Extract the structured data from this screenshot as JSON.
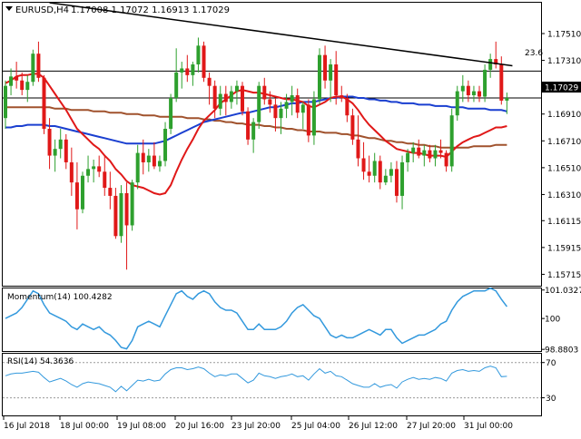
{
  "header": {
    "symbol_label": "EURUSD,H4",
    "ohlc_text": "1.17008 1.17072 1.16913 1.17029"
  },
  "price_badge": "1.17029",
  "fib_label": "23.6",
  "colors": {
    "bull": "#2ea02e",
    "bear": "#e01818",
    "ma_fast": "#e01818",
    "ma_mid": "#1a3fd0",
    "ma_slow": "#a0522d",
    "oscillator": "#3399dd",
    "grid": "#000000",
    "badge_bg": "#000000",
    "badge_fg": "#ffffff"
  },
  "chart_data": [
    {
      "type": "candlestick",
      "symbol": "EURUSD",
      "timeframe": "H4",
      "ylim": [
        1.1563,
        1.1774
      ],
      "y_ticks": [
        "1.17510",
        "1.17310",
        "1.17110",
        "1.17029",
        "1.16910",
        "1.16710",
        "1.16510",
        "1.16310",
        "1.16115",
        "1.15915",
        "1.15715"
      ],
      "x_ticks": [
        "16 Jul 2018",
        "18 Jul 00:00",
        "19 Jul 08:00",
        "20 Jul 16:00",
        "23 Jul 20:00",
        "25 Jul 04:00",
        "26 Jul 12:00",
        "27 Jul 20:00",
        "31 Jul 00:00"
      ],
      "horizontal_lines": [
        1.1723,
        1.1703
      ],
      "trendline": {
        "from": [
          8,
          1.1774
        ],
        "to": [
          92,
          1.1727
        ]
      },
      "candles": [
        {
          "o": 1.1688,
          "h": 1.1716,
          "l": 1.168,
          "c": 1.1712
        },
        {
          "o": 1.1712,
          "h": 1.1725,
          "l": 1.1705,
          "c": 1.1719
        },
        {
          "o": 1.1719,
          "h": 1.173,
          "l": 1.171,
          "c": 1.1716
        },
        {
          "o": 1.1716,
          "h": 1.1722,
          "l": 1.1705,
          "c": 1.1709
        },
        {
          "o": 1.1709,
          "h": 1.172,
          "l": 1.17,
          "c": 1.1715
        },
        {
          "o": 1.1715,
          "h": 1.1739,
          "l": 1.1712,
          "c": 1.1736
        },
        {
          "o": 1.1736,
          "h": 1.1745,
          "l": 1.1715,
          "c": 1.1718
        },
        {
          "o": 1.1718,
          "h": 1.172,
          "l": 1.1676,
          "c": 1.168
        },
        {
          "o": 1.168,
          "h": 1.1688,
          "l": 1.165,
          "c": 1.166
        },
        {
          "o": 1.166,
          "h": 1.1672,
          "l": 1.1648,
          "c": 1.1665
        },
        {
          "o": 1.1665,
          "h": 1.168,
          "l": 1.1658,
          "c": 1.1672
        },
        {
          "o": 1.1672,
          "h": 1.1676,
          "l": 1.165,
          "c": 1.1655
        },
        {
          "o": 1.1655,
          "h": 1.1666,
          "l": 1.163,
          "c": 1.164
        },
        {
          "o": 1.164,
          "h": 1.1655,
          "l": 1.1605,
          "c": 1.162
        },
        {
          "o": 1.162,
          "h": 1.1648,
          "l": 1.1617,
          "c": 1.1645
        },
        {
          "o": 1.1645,
          "h": 1.166,
          "l": 1.164,
          "c": 1.165
        },
        {
          "o": 1.165,
          "h": 1.1657,
          "l": 1.164,
          "c": 1.1652
        },
        {
          "o": 1.1652,
          "h": 1.166,
          "l": 1.1644,
          "c": 1.1648
        },
        {
          "o": 1.1648,
          "h": 1.166,
          "l": 1.163,
          "c": 1.1636
        },
        {
          "o": 1.1636,
          "h": 1.1648,
          "l": 1.162,
          "c": 1.163
        },
        {
          "o": 1.163,
          "h": 1.1636,
          "l": 1.1598,
          "c": 1.16
        },
        {
          "o": 1.16,
          "h": 1.1638,
          "l": 1.1595,
          "c": 1.1632
        },
        {
          "o": 1.1632,
          "h": 1.164,
          "l": 1.1575,
          "c": 1.1608
        },
        {
          "o": 1.1608,
          "h": 1.1642,
          "l": 1.1604,
          "c": 1.164
        },
        {
          "o": 1.164,
          "h": 1.1668,
          "l": 1.1635,
          "c": 1.1662
        },
        {
          "o": 1.1662,
          "h": 1.1672,
          "l": 1.1646,
          "c": 1.1655
        },
        {
          "o": 1.1655,
          "h": 1.1665,
          "l": 1.1648,
          "c": 1.166
        },
        {
          "o": 1.166,
          "h": 1.167,
          "l": 1.165,
          "c": 1.1652
        },
        {
          "o": 1.1652,
          "h": 1.166,
          "l": 1.1648,
          "c": 1.1656
        },
        {
          "o": 1.1656,
          "h": 1.1685,
          "l": 1.1652,
          "c": 1.168
        },
        {
          "o": 1.168,
          "h": 1.1706,
          "l": 1.1676,
          "c": 1.1703
        },
        {
          "o": 1.1703,
          "h": 1.174,
          "l": 1.17,
          "c": 1.1722
        },
        {
          "o": 1.1722,
          "h": 1.173,
          "l": 1.171,
          "c": 1.1725
        },
        {
          "o": 1.1725,
          "h": 1.1735,
          "l": 1.1715,
          "c": 1.172
        },
        {
          "o": 1.172,
          "h": 1.173,
          "l": 1.1712,
          "c": 1.1728
        },
        {
          "o": 1.1728,
          "h": 1.1748,
          "l": 1.1722,
          "c": 1.1742
        },
        {
          "o": 1.1742,
          "h": 1.1745,
          "l": 1.1715,
          "c": 1.1718
        },
        {
          "o": 1.1718,
          "h": 1.1722,
          "l": 1.1698,
          "c": 1.1712
        },
        {
          "o": 1.1712,
          "h": 1.1716,
          "l": 1.1688,
          "c": 1.1695
        },
        {
          "o": 1.1695,
          "h": 1.1712,
          "l": 1.169,
          "c": 1.1706
        },
        {
          "o": 1.1706,
          "h": 1.1712,
          "l": 1.169,
          "c": 1.17
        },
        {
          "o": 1.17,
          "h": 1.1712,
          "l": 1.1695,
          "c": 1.1708
        },
        {
          "o": 1.1708,
          "h": 1.1716,
          "l": 1.1698,
          "c": 1.1712
        },
        {
          "o": 1.1712,
          "h": 1.1715,
          "l": 1.169,
          "c": 1.1693
        },
        {
          "o": 1.1693,
          "h": 1.1696,
          "l": 1.1668,
          "c": 1.1672
        },
        {
          "o": 1.1672,
          "h": 1.1688,
          "l": 1.1662,
          "c": 1.1685
        },
        {
          "o": 1.1685,
          "h": 1.1715,
          "l": 1.168,
          "c": 1.1712
        },
        {
          "o": 1.1712,
          "h": 1.1718,
          "l": 1.1698,
          "c": 1.1702
        },
        {
          "o": 1.1702,
          "h": 1.1708,
          "l": 1.1692,
          "c": 1.1698
        },
        {
          "o": 1.1698,
          "h": 1.1703,
          "l": 1.1678,
          "c": 1.1688
        },
        {
          "o": 1.1688,
          "h": 1.17,
          "l": 1.1676,
          "c": 1.1695
        },
        {
          "o": 1.1695,
          "h": 1.1706,
          "l": 1.1688,
          "c": 1.17
        },
        {
          "o": 1.17,
          "h": 1.1712,
          "l": 1.169,
          "c": 1.1705
        },
        {
          "o": 1.1705,
          "h": 1.171,
          "l": 1.1688,
          "c": 1.1692
        },
        {
          "o": 1.1692,
          "h": 1.17,
          "l": 1.168,
          "c": 1.1698
        },
        {
          "o": 1.1698,
          "h": 1.1702,
          "l": 1.167,
          "c": 1.1675
        },
        {
          "o": 1.1675,
          "h": 1.1708,
          "l": 1.1668,
          "c": 1.1702
        },
        {
          "o": 1.1702,
          "h": 1.174,
          "l": 1.1698,
          "c": 1.1735
        },
        {
          "o": 1.1735,
          "h": 1.1742,
          "l": 1.171,
          "c": 1.1716
        },
        {
          "o": 1.1716,
          "h": 1.1732,
          "l": 1.17,
          "c": 1.1728
        },
        {
          "o": 1.1728,
          "h": 1.1738,
          "l": 1.1698,
          "c": 1.1705
        },
        {
          "o": 1.1705,
          "h": 1.1712,
          "l": 1.17,
          "c": 1.1703
        },
        {
          "o": 1.1703,
          "h": 1.1706,
          "l": 1.1685,
          "c": 1.169
        },
        {
          "o": 1.169,
          "h": 1.1695,
          "l": 1.1668,
          "c": 1.1672
        },
        {
          "o": 1.1672,
          "h": 1.169,
          "l": 1.1652,
          "c": 1.1658
        },
        {
          "o": 1.1658,
          "h": 1.167,
          "l": 1.1642,
          "c": 1.1648
        },
        {
          "o": 1.1648,
          "h": 1.166,
          "l": 1.164,
          "c": 1.1645
        },
        {
          "o": 1.1645,
          "h": 1.1662,
          "l": 1.164,
          "c": 1.1656
        },
        {
          "o": 1.1656,
          "h": 1.166,
          "l": 1.1635,
          "c": 1.164
        },
        {
          "o": 1.164,
          "h": 1.165,
          "l": 1.1638,
          "c": 1.1645
        },
        {
          "o": 1.1645,
          "h": 1.1655,
          "l": 1.164,
          "c": 1.165
        },
        {
          "o": 1.165,
          "h": 1.1656,
          "l": 1.1625,
          "c": 1.163
        },
        {
          "o": 1.163,
          "h": 1.166,
          "l": 1.162,
          "c": 1.1655
        },
        {
          "o": 1.1655,
          "h": 1.1665,
          "l": 1.1648,
          "c": 1.1662
        },
        {
          "o": 1.1662,
          "h": 1.167,
          "l": 1.1655,
          "c": 1.1666
        },
        {
          "o": 1.1666,
          "h": 1.1672,
          "l": 1.1658,
          "c": 1.166
        },
        {
          "o": 1.166,
          "h": 1.1668,
          "l": 1.1652,
          "c": 1.1664
        },
        {
          "o": 1.1664,
          "h": 1.1668,
          "l": 1.1655,
          "c": 1.1658
        },
        {
          "o": 1.1658,
          "h": 1.1668,
          "l": 1.1652,
          "c": 1.1664
        },
        {
          "o": 1.1664,
          "h": 1.1672,
          "l": 1.1658,
          "c": 1.1662
        },
        {
          "o": 1.1662,
          "h": 1.1664,
          "l": 1.1648,
          "c": 1.1652
        },
        {
          "o": 1.1652,
          "h": 1.1695,
          "l": 1.1648,
          "c": 1.169
        },
        {
          "o": 1.169,
          "h": 1.1712,
          "l": 1.1686,
          "c": 1.1708
        },
        {
          "o": 1.1708,
          "h": 1.172,
          "l": 1.17,
          "c": 1.1712
        },
        {
          "o": 1.1712,
          "h": 1.1716,
          "l": 1.17,
          "c": 1.1705
        },
        {
          "o": 1.1705,
          "h": 1.1712,
          "l": 1.17,
          "c": 1.1708
        },
        {
          "o": 1.1708,
          "h": 1.1712,
          "l": 1.17,
          "c": 1.1704
        },
        {
          "o": 1.1704,
          "h": 1.1728,
          "l": 1.17,
          "c": 1.1724
        },
        {
          "o": 1.1724,
          "h": 1.1736,
          "l": 1.1718,
          "c": 1.1732
        },
        {
          "o": 1.1732,
          "h": 1.1745,
          "l": 1.1725,
          "c": 1.1728
        },
        {
          "o": 1.1728,
          "h": 1.1734,
          "l": 1.1698,
          "c": 1.1701
        },
        {
          "o": 1.1701,
          "h": 1.1707,
          "l": 1.1691,
          "c": 1.1703
        }
      ],
      "ma_fast": [
        1.1714,
        1.1716,
        1.1719,
        1.172,
        1.172,
        1.1721,
        1.1721,
        1.1718,
        1.1712,
        1.1706,
        1.17,
        1.1694,
        1.1687,
        1.168,
        1.1676,
        1.1672,
        1.1668,
        1.1665,
        1.166,
        1.1656,
        1.165,
        1.1646,
        1.1641,
        1.1638,
        1.1637,
        1.1636,
        1.1634,
        1.1632,
        1.1631,
        1.1632,
        1.1638,
        1.1648,
        1.1657,
        1.1665,
        1.1672,
        1.168,
        1.1686,
        1.169,
        1.1694,
        1.1699,
        1.1702,
        1.1705,
        1.1708,
        1.1709,
        1.1708,
        1.1707,
        1.1707,
        1.1706,
        1.1705,
        1.1704,
        1.1703,
        1.1702,
        1.1702,
        1.1701,
        1.17,
        1.1697,
        1.1696,
        1.1698,
        1.17,
        1.1703,
        1.1704,
        1.1704,
        1.1702,
        1.1699,
        1.1694,
        1.1688,
        1.1683,
        1.1679,
        1.1675,
        1.1671,
        1.1668,
        1.1665,
        1.1664,
        1.1663,
        1.1662,
        1.1662,
        1.1661,
        1.166,
        1.166,
        1.166,
        1.1659,
        1.1663,
        1.1667,
        1.167,
        1.1672,
        1.1674,
        1.1675,
        1.1677,
        1.1679,
        1.1681,
        1.1681,
        1.1682
      ],
      "ma_mid": [
        1.1681,
        1.1681,
        1.1682,
        1.1682,
        1.1683,
        1.1683,
        1.1683,
        1.1683,
        1.1682,
        1.1682,
        1.1681,
        1.168,
        1.1679,
        1.1678,
        1.1677,
        1.1676,
        1.1675,
        1.1674,
        1.1673,
        1.1672,
        1.1671,
        1.167,
        1.1669,
        1.1669,
        1.1669,
        1.1669,
        1.1669,
        1.1669,
        1.167,
        1.1671,
        1.1673,
        1.1675,
        1.1677,
        1.1679,
        1.1681,
        1.1683,
        1.1685,
        1.1686,
        1.1687,
        1.1688,
        1.1689,
        1.169,
        1.1691,
        1.1692,
        1.1692,
        1.1693,
        1.1694,
        1.1695,
        1.1696,
        1.1696,
        1.1697,
        1.1698,
        1.1699,
        1.1699,
        1.17,
        1.17,
        1.17,
        1.1701,
        1.1702,
        1.1703,
        1.1703,
        1.1704,
        1.1704,
        1.1704,
        1.1703,
        1.1703,
        1.1702,
        1.1702,
        1.1701,
        1.1701,
        1.17,
        1.17,
        1.1699,
        1.1699,
        1.1699,
        1.1698,
        1.1698,
        1.1698,
        1.1697,
        1.1697,
        1.1697,
        1.1696,
        1.1696,
        1.1696,
        1.1695,
        1.1695,
        1.1695,
        1.1695,
        1.1694,
        1.1694,
        1.1694,
        1.1693
      ],
      "ma_slow": [
        1.1696,
        1.1696,
        1.1696,
        1.1696,
        1.1696,
        1.1696,
        1.1696,
        1.1696,
        1.1696,
        1.1695,
        1.1695,
        1.1695,
        1.1694,
        1.1694,
        1.1694,
        1.1694,
        1.1693,
        1.1693,
        1.1693,
        1.1692,
        1.1692,
        1.1692,
        1.1691,
        1.1691,
        1.1691,
        1.169,
        1.169,
        1.169,
        1.1689,
        1.1689,
        1.1689,
        1.1689,
        1.1689,
        1.1688,
        1.1688,
        1.1688,
        1.1687,
        1.1687,
        1.1686,
        1.1686,
        1.1685,
        1.1685,
        1.1684,
        1.1684,
        1.1683,
        1.1683,
        1.1683,
        1.1682,
        1.1682,
        1.1681,
        1.1681,
        1.168,
        1.168,
        1.1679,
        1.1679,
        1.1678,
        1.1678,
        1.1678,
        1.1677,
        1.1677,
        1.1677,
        1.1676,
        1.1676,
        1.1675,
        1.1675,
        1.1674,
        1.1673,
        1.1673,
        1.1672,
        1.1671,
        1.1671,
        1.167,
        1.167,
        1.1669,
        1.1669,
        1.1668,
        1.1668,
        1.1667,
        1.1667,
        1.1666,
        1.1666,
        1.1666,
        1.1666,
        1.1666,
        1.1666,
        1.1667,
        1.1667,
        1.1667,
        1.1667,
        1.1668,
        1.1668,
        1.1668
      ]
    },
    {
      "type": "line",
      "title": "Momentum(14) 100.4282",
      "ylim": [
        98.82,
        101.09
      ],
      "y_ticks": [
        "101.0327",
        "100",
        "98.8803"
      ],
      "values": [
        100.0,
        100.1,
        100.2,
        100.4,
        100.7,
        101.0,
        100.9,
        100.5,
        100.2,
        100.1,
        100.0,
        99.9,
        99.7,
        99.6,
        99.8,
        99.7,
        99.6,
        99.7,
        99.5,
        99.4,
        99.2,
        98.95,
        98.9,
        99.2,
        99.7,
        99.8,
        99.9,
        99.8,
        99.7,
        100.1,
        100.5,
        100.9,
        101.0,
        100.8,
        100.7,
        100.9,
        101.0,
        100.9,
        100.6,
        100.4,
        100.3,
        100.3,
        100.2,
        99.9,
        99.6,
        99.6,
        99.8,
        99.6,
        99.6,
        99.6,
        99.7,
        99.9,
        100.2,
        100.4,
        100.5,
        100.3,
        100.1,
        100.0,
        99.7,
        99.4,
        99.3,
        99.4,
        99.3,
        99.3,
        99.4,
        99.5,
        99.6,
        99.5,
        99.4,
        99.6,
        99.6,
        99.3,
        99.1,
        99.2,
        99.3,
        99.4,
        99.4,
        99.5,
        99.6,
        99.8,
        99.9,
        100.3,
        100.6,
        100.8,
        100.9,
        101.0,
        101.0,
        101.0,
        101.1,
        101.0,
        100.7,
        100.43
      ]
    },
    {
      "type": "line",
      "title": "RSI(14) 54.3636",
      "ylim": [
        10,
        80
      ],
      "y_ticks": [
        "70",
        "30"
      ],
      "reference_lines": [
        70,
        30
      ],
      "values": [
        55,
        57,
        58,
        58,
        59,
        60,
        59,
        53,
        48,
        50,
        52,
        49,
        45,
        42,
        46,
        48,
        47,
        46,
        44,
        42,
        37,
        43,
        38,
        44,
        50,
        49,
        51,
        49,
        50,
        57,
        62,
        64,
        64,
        62,
        63,
        65,
        63,
        58,
        54,
        56,
        55,
        57,
        57,
        52,
        47,
        50,
        58,
        55,
        54,
        52,
        54,
        55,
        57,
        54,
        55,
        50,
        57,
        63,
        58,
        60,
        55,
        54,
        50,
        46,
        44,
        42,
        42,
        46,
        42,
        44,
        45,
        41,
        48,
        51,
        53,
        51,
        52,
        51,
        53,
        52,
        49,
        58,
        61,
        62,
        60,
        61,
        60,
        64,
        66,
        64,
        54,
        54.36
      ]
    }
  ]
}
